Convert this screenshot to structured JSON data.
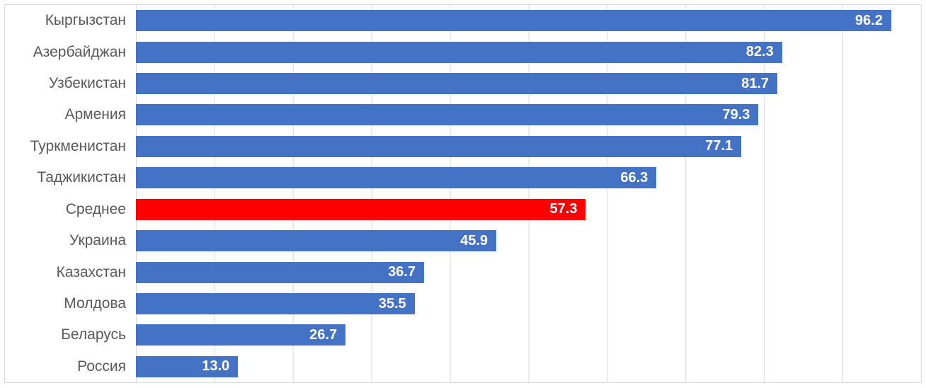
{
  "chart_data": {
    "type": "bar",
    "orientation": "horizontal",
    "title": "",
    "xlabel": "",
    "ylabel": "",
    "categories": [
      "Кыргызстан",
      "Азербайджан",
      "Узбекистан",
      "Армения",
      "Туркменистан",
      "Таджикистан",
      "Среднее",
      "Украина",
      "Казахстан",
      "Молдова",
      "Беларусь",
      "Россия"
    ],
    "values": [
      96.2,
      82.3,
      81.7,
      79.3,
      77.1,
      66.3,
      57.3,
      45.9,
      36.7,
      35.5,
      26.7,
      13.0
    ],
    "value_labels": [
      "96.2",
      "82.3",
      "81.7",
      "79.3",
      "77.1",
      "66.3",
      "57.3",
      "45.9",
      "36.7",
      "35.5",
      "26.7",
      "13.0"
    ],
    "highlight_category": "Среднее",
    "xlim": [
      0,
      100
    ],
    "gridline_step": 10,
    "grid_on": true,
    "legend": "none",
    "colors": {
      "bar": "#4472C4",
      "highlight": "#FF0000",
      "category_label": "#595959",
      "value_label": "#FFFFFF",
      "gridline": "#D9D9D9",
      "frame": "#D9D9D9",
      "background": "#FFFFFF"
    }
  }
}
